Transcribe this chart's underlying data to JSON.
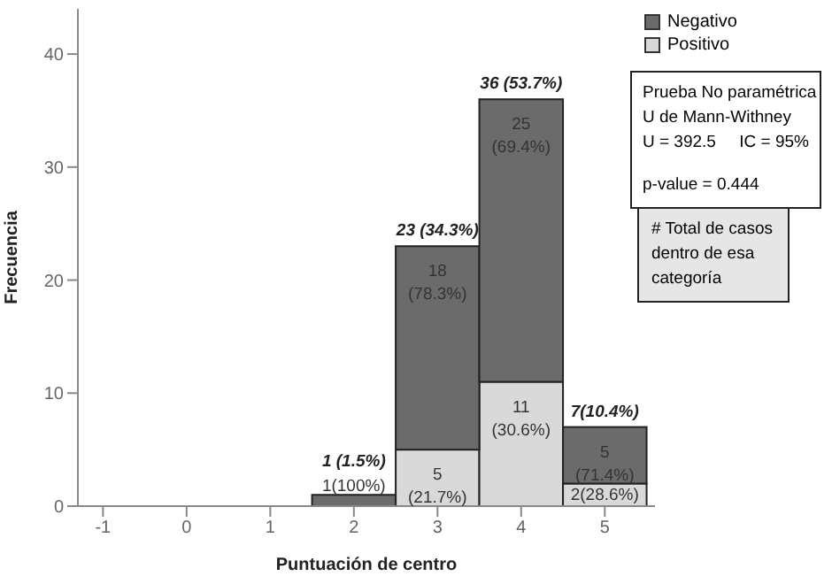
{
  "chart_data": {
    "type": "bar",
    "stacked": true,
    "xlabel": "Puntuación de centro",
    "ylabel": "Frecuencia",
    "x": [
      2,
      3,
      4,
      5
    ],
    "xlim": [
      -1.3,
      5.6
    ],
    "xticks": [
      -1,
      0,
      1,
      2,
      3,
      4,
      5
    ],
    "ylim": [
      0,
      44
    ],
    "yticks": [
      0,
      10,
      20,
      30,
      40
    ],
    "series": [
      {
        "name": "Positivo",
        "color": "#d9d9d9",
        "values": [
          0,
          5,
          11,
          2
        ],
        "value_labels": [
          null,
          "5 (21.7%)",
          "11 (30.6%)",
          "2(28.6%)"
        ]
      },
      {
        "name": "Negativo",
        "color": "#6b6b6b",
        "values": [
          1,
          18,
          25,
          5
        ],
        "value_labels": [
          "1(100%)",
          "18 (78.3%)",
          "25 (69.4%)",
          "5 (71.4%)"
        ]
      }
    ],
    "totals": [
      "1 (1.5%)",
      "23 (34.3%)",
      "36 (53.7%)",
      "7(10.4%)"
    ],
    "legend": "top right",
    "grid": false,
    "annotations": [
      "Prueba No paramétrica",
      "U de Mann-Withney",
      "U = 392.5     IC = 95%",
      "p-value = 0.444",
      "# Total de casos dentro de esa categoría"
    ]
  }
}
